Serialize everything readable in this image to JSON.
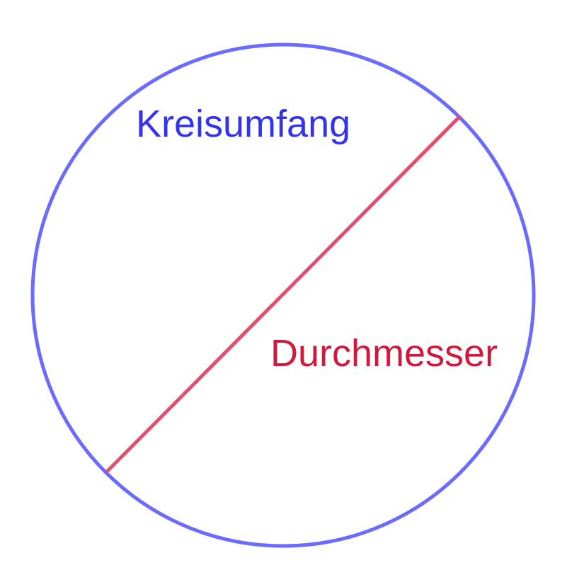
{
  "labels": {
    "circumference": "Kreisumfang",
    "diameter": "Durchmesser"
  },
  "colors": {
    "circle_stroke": "#6b6bff",
    "diameter_stroke": "#e0506e",
    "circumference_text": "#3333ee",
    "diameter_text": "#d01a3c",
    "background": "#ffffff"
  }
}
